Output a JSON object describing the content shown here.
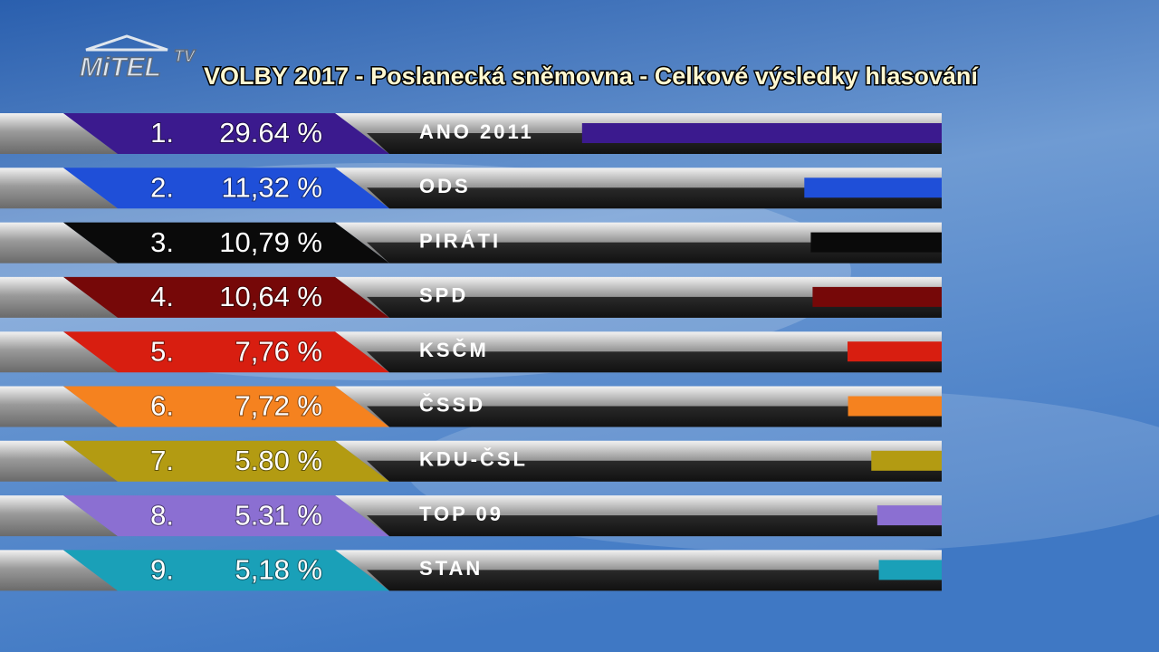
{
  "logo": {
    "name": "MiTEL",
    "suffix": "TV"
  },
  "chart_data": {
    "type": "bar",
    "orientation": "horizontal",
    "title": "VOLBY 2017 - Poslanecká sněmovna - Celkové výsledky hlasování",
    "ranks": [
      "1.",
      "2.",
      "3.",
      "4.",
      "5.",
      "6.",
      "7.",
      "8.",
      "9."
    ],
    "categories": [
      "ANO 2011",
      "ODS",
      "PIRÁTI",
      "SPD",
      "KSČM",
      "ČSSD",
      "KDU-ČSL",
      "TOP 09",
      "STAN"
    ],
    "values": [
      29.64,
      11.32,
      10.79,
      10.64,
      7.76,
      7.72,
      5.8,
      5.31,
      5.18
    ],
    "value_labels": [
      "29.64 %",
      "11,32 %",
      "10,79 %",
      "10,64 %",
      "7,76 %",
      "7,72 %",
      "5.80 %",
      "5.31 %",
      "5,18 %"
    ],
    "colors": [
      "#3b1a8e",
      "#1f4fd8",
      "#0a0a0a",
      "#760808",
      "#d81e10",
      "#f5821f",
      "#b39b12",
      "#8b6fd2",
      "#1aa0b8"
    ]
  }
}
